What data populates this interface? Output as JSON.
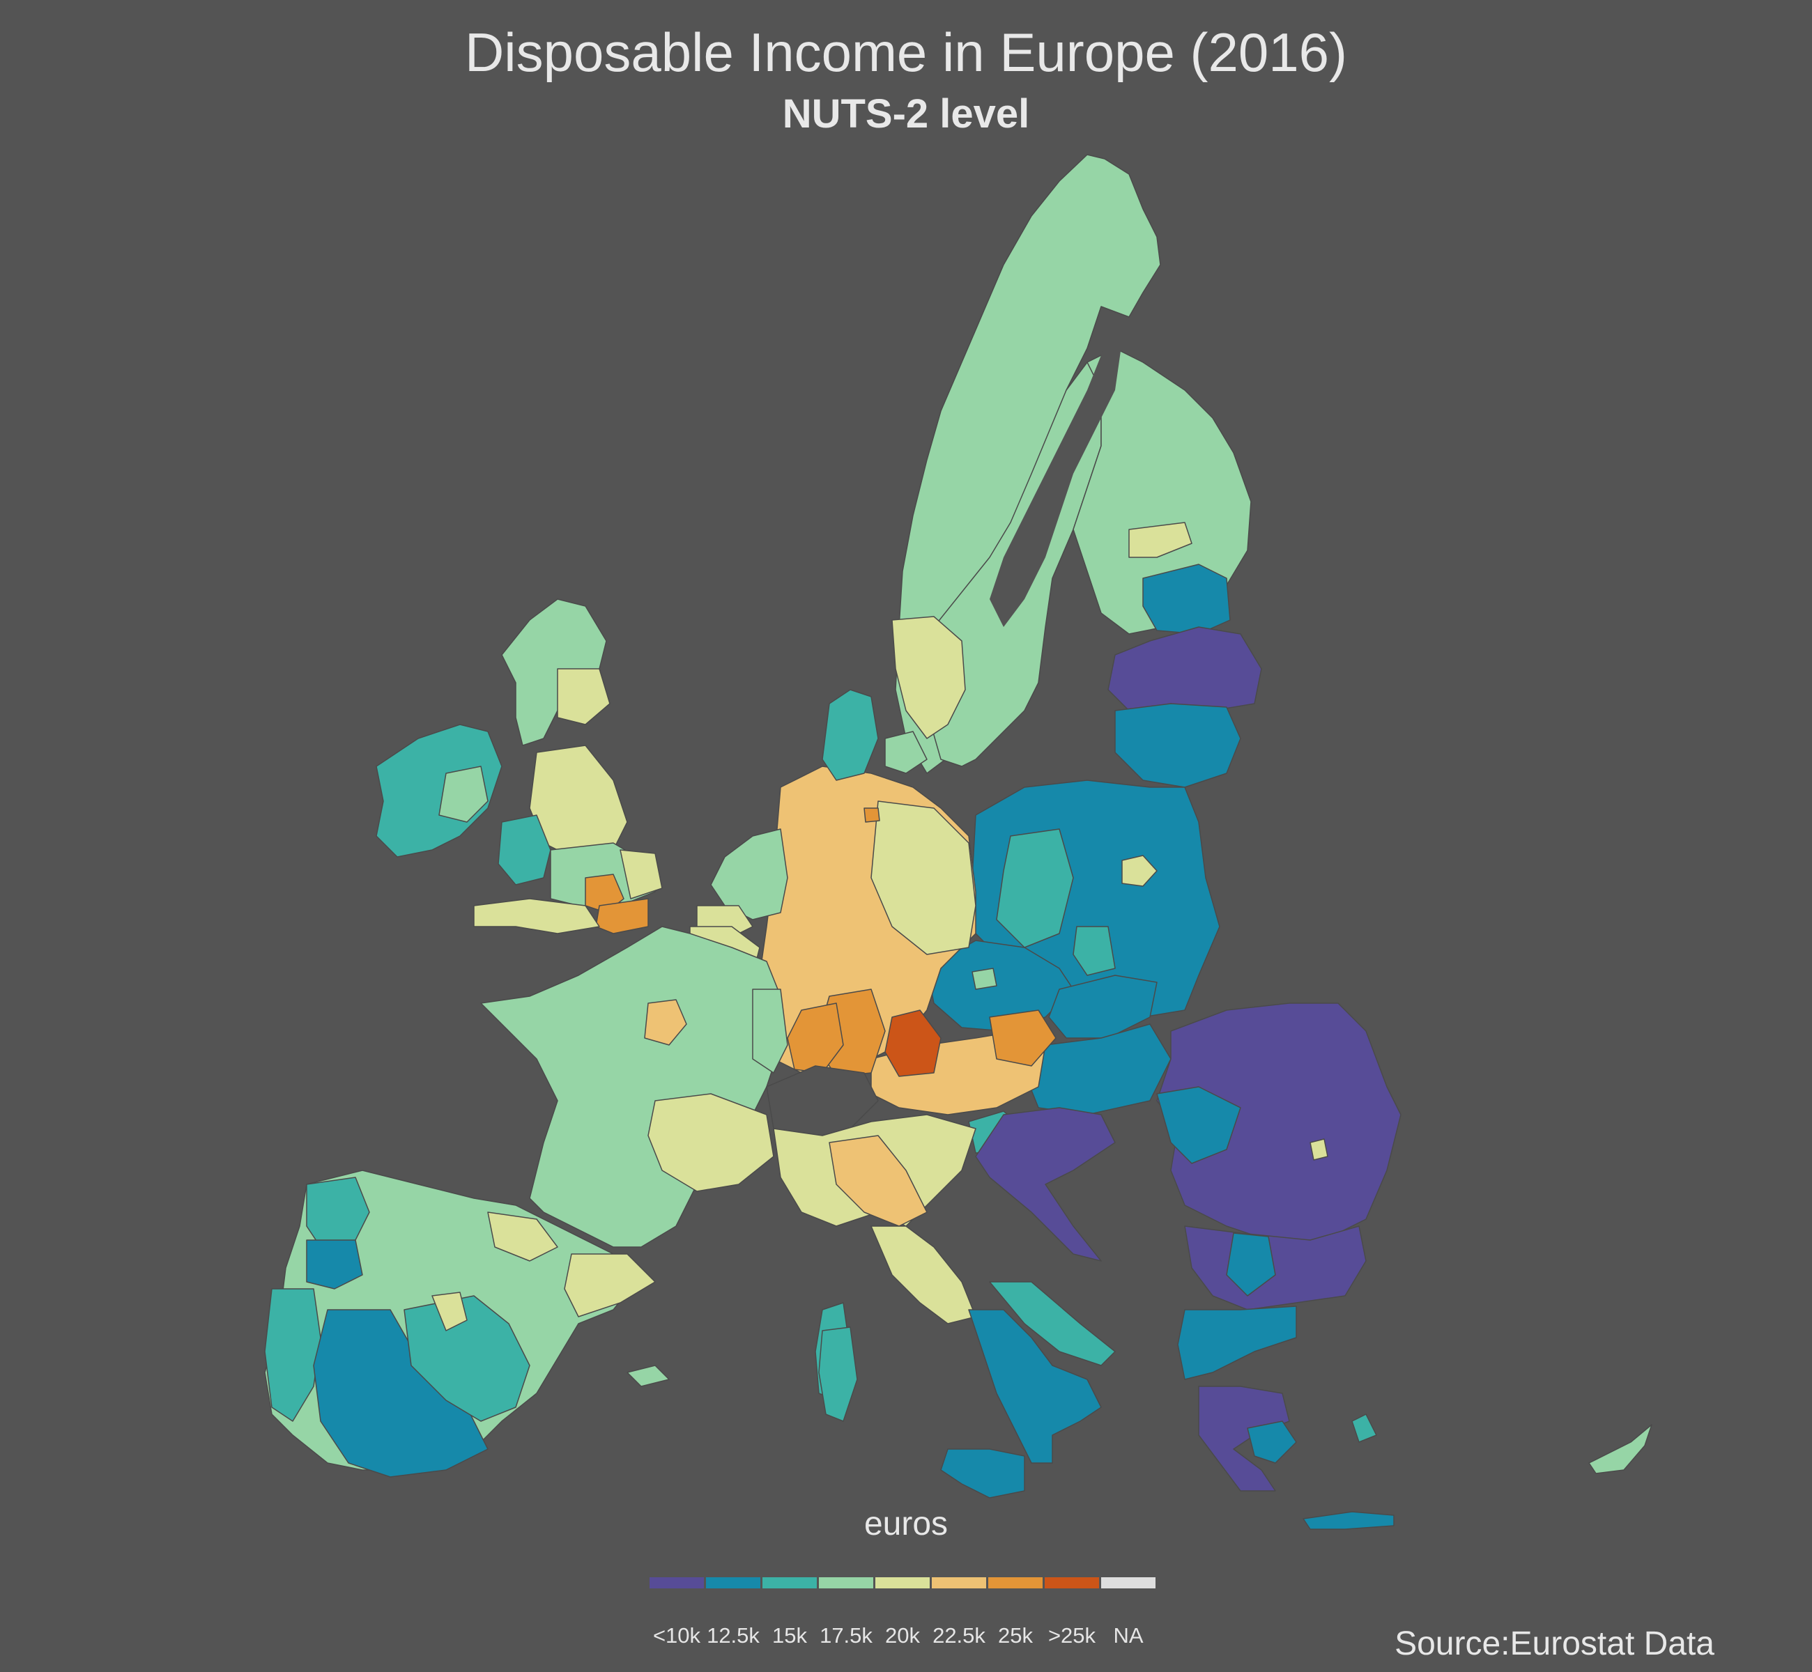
{
  "title": "Disposable Income in Europe (2016)",
  "subtitle": "NUTS-2 level",
  "legend": {
    "title": "euros",
    "items": [
      {
        "label": "<10k",
        "color": "#574c97"
      },
      {
        "label": "12.5k",
        "color": "#1689aa"
      },
      {
        "label": "15k",
        "color": "#3cb2a6"
      },
      {
        "label": "17.5k",
        "color": "#96d5a6"
      },
      {
        "label": "20k",
        "color": "#dae19a"
      },
      {
        "label": "22.5k",
        "color": "#eec274"
      },
      {
        "label": "25k",
        "color": "#e39537"
      },
      {
        "label": ">25k",
        "color": "#cc5518"
      },
      {
        "label": "NA",
        "color": "#dedede"
      }
    ]
  },
  "source": "Source:Eurostat Data",
  "background_color": "#545454"
}
